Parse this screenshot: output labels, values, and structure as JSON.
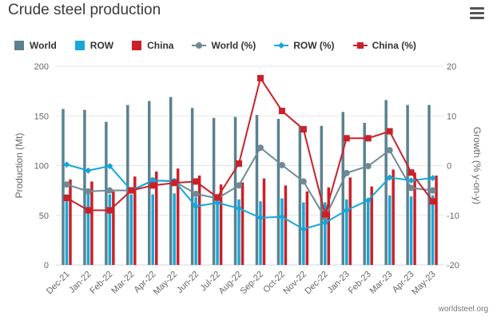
{
  "title": "Crude steel production",
  "credit": "worldsteel.org",
  "colors": {
    "world_bar": "#5b8290",
    "row_bar": "#14a9d9",
    "china_bar": "#cb2029",
    "world_line": "#6f8a95",
    "row_line": "#10a8dc",
    "china_line": "#cb2029",
    "grid": "#e6e6e6",
    "axis_text": "#666666"
  },
  "legend": [
    {
      "label": "World",
      "kind": "bar",
      "color_key": "world_bar"
    },
    {
      "label": "ROW",
      "kind": "bar",
      "color_key": "row_bar"
    },
    {
      "label": "China",
      "kind": "bar",
      "color_key": "china_bar"
    },
    {
      "label": "World (%)",
      "kind": "line-circle",
      "color_key": "world_line"
    },
    {
      "label": "ROW (%)",
      "kind": "line-diamond",
      "color_key": "row_line"
    },
    {
      "label": "China (%)",
      "kind": "line-square",
      "color_key": "china_line"
    }
  ],
  "chart_data": {
    "type": "bar",
    "title": "Crude steel production",
    "categories": [
      "Dec-21",
      "Jan-22",
      "Feb-22",
      "Mar-22",
      "Apr-22",
      "May-22",
      "Jun-22",
      "Jul-22",
      "Aug-22",
      "Sep-22",
      "Oct-22",
      "Nov-22",
      "Dec-22",
      "Jan-23",
      "Feb-23",
      "Mar-23",
      "Apr-23",
      "May-23"
    ],
    "ylabel_left": "Production (Mt)",
    "ylabel_right": "Growth (% y-on-y)",
    "ylim_left": [
      0,
      200
    ],
    "ylim_right": [
      -20,
      20
    ],
    "yticks_left": [
      0,
      50,
      100,
      150,
      200
    ],
    "yticks_right": [
      -20,
      -10,
      0,
      10,
      20
    ],
    "bar_series": [
      {
        "name": "World",
        "values": [
          157,
          156,
          144,
          161,
          165,
          169,
          158,
          148,
          149,
          151,
          147,
          139,
          140,
          154,
          143,
          166,
          161,
          161
        ]
      },
      {
        "name": "ROW",
        "values": [
          71,
          74,
          71,
          71,
          71,
          72,
          68,
          68,
          66,
          64,
          67,
          63,
          63,
          66,
          65,
          70,
          69,
          70
        ]
      },
      {
        "name": "China",
        "values": [
          86,
          84,
          74,
          89,
          94,
          97,
          90,
          81,
          83,
          87,
          80,
          74,
          78,
          88,
          79,
          96,
          93,
          90
        ]
      }
    ],
    "line_series": [
      {
        "name": "World (%)",
        "axis": "right",
        "values": [
          -3.8,
          -5.2,
          -5.0,
          -5.0,
          -3.0,
          -3.2,
          -5.7,
          -6.6,
          -4.0,
          3.6,
          0.1,
          -3.2,
          -10.5,
          -1.5,
          -0.1,
          3.1,
          -4.5,
          -5.0
        ]
      },
      {
        "name": "ROW (%)",
        "axis": "right",
        "values": [
          0.2,
          -1.0,
          -0.1,
          -5.0,
          -3.0,
          -3.1,
          -8.2,
          -7.5,
          -8.6,
          -10.5,
          -10.3,
          -12.8,
          -11.5,
          -9.0,
          -7.0,
          -2.4,
          -3.0,
          -2.5
        ]
      },
      {
        "name": "China (%)",
        "axis": "right",
        "values": [
          -6.5,
          -9.0,
          -9.0,
          -5.0,
          -4.0,
          -3.5,
          -3.2,
          -6.4,
          0.4,
          17.6,
          11.0,
          7.3,
          -9.8,
          5.5,
          5.5,
          6.9,
          -1.4,
          -7.2
        ]
      }
    ],
    "grid": true,
    "legend_position": "top-left"
  }
}
